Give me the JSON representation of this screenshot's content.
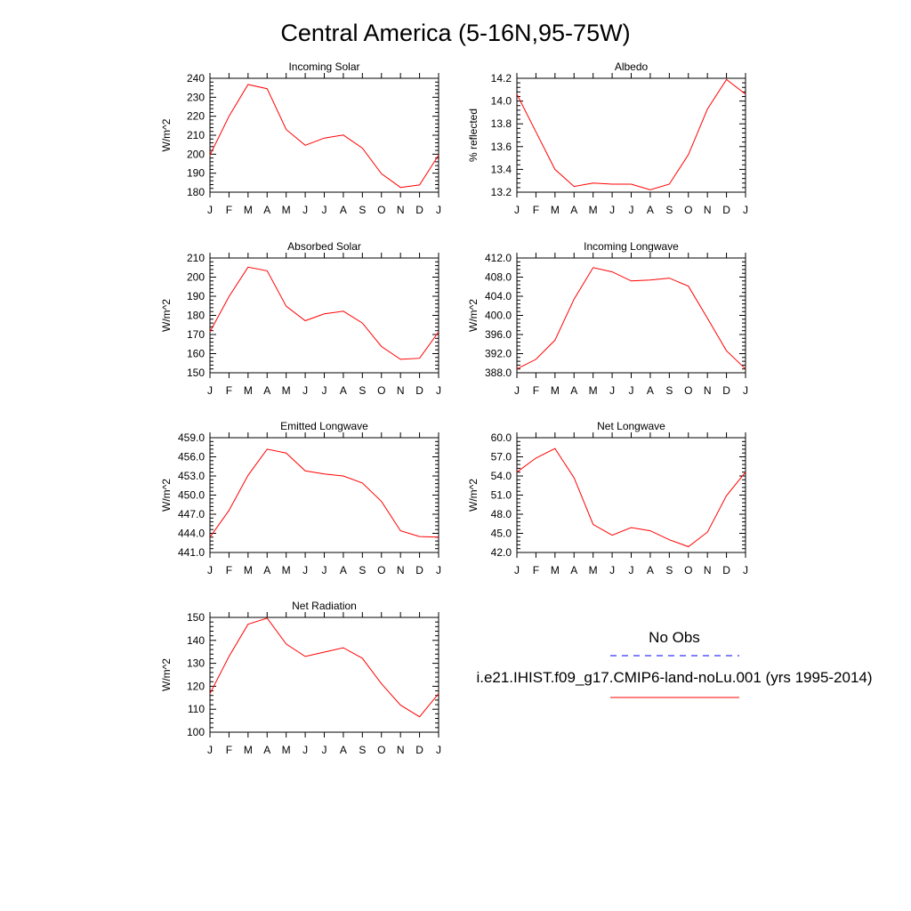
{
  "page_title": "Central America (5-16N,95-75W)",
  "legend": {
    "obs_label": "No Obs",
    "model_label": "i.e21.IHIST.f09_g17.CMIP6-land-noLu.001 (yrs 1995-2014)",
    "obs_color": "#0000ff",
    "model_color": "#ff0000",
    "obs_style": "dashed",
    "model_style": "solid"
  },
  "chart_data": [
    {
      "type": "line",
      "title": "Incoming Solar",
      "ylabel": "W/m^2",
      "xlabel": "",
      "categories": [
        "J",
        "F",
        "M",
        "A",
        "M",
        "J",
        "J",
        "A",
        "S",
        "O",
        "N",
        "D",
        "J"
      ],
      "ylim": [
        180,
        240
      ],
      "yticks": [
        "180",
        "190",
        "200",
        "210",
        "220",
        "230",
        "240"
      ],
      "series": [
        {
          "color": "#ff0000",
          "values": [
            199.5,
            220,
            236.7,
            234.5,
            213,
            204.7,
            208.5,
            210.1,
            203.2,
            189.7,
            182.5,
            183.8,
            199.5
          ]
        }
      ]
    },
    {
      "type": "line",
      "title": "Albedo",
      "ylabel": "% reflected",
      "xlabel": "",
      "categories": [
        "J",
        "F",
        "M",
        "A",
        "M",
        "J",
        "J",
        "A",
        "S",
        "O",
        "N",
        "D",
        "J"
      ],
      "ylim": [
        13.2,
        14.2
      ],
      "yticks": [
        "13.2",
        "13.4",
        "13.6",
        "13.8",
        "14.0",
        "14.2"
      ],
      "series": [
        {
          "color": "#ff0000",
          "values": [
            14.06,
            13.73,
            13.4,
            13.25,
            13.28,
            13.27,
            13.27,
            13.22,
            13.27,
            13.53,
            13.93,
            14.19,
            14.06
          ]
        }
      ]
    },
    {
      "type": "line",
      "title": "Absorbed Solar",
      "ylabel": "W/m^2",
      "xlabel": "",
      "categories": [
        "J",
        "F",
        "M",
        "A",
        "M",
        "J",
        "J",
        "A",
        "S",
        "O",
        "N",
        "D",
        "J"
      ],
      "ylim": [
        150,
        210
      ],
      "yticks": [
        "150",
        "160",
        "170",
        "180",
        "190",
        "200",
        "210"
      ],
      "series": [
        {
          "color": "#ff0000",
          "values": [
            171.4,
            189.8,
            205.2,
            203.3,
            184.8,
            177.2,
            180.8,
            182.2,
            176.0,
            163.7,
            157.0,
            157.6,
            171.4
          ]
        }
      ]
    },
    {
      "type": "line",
      "title": "Incoming Longwave",
      "ylabel": "W/m^2",
      "xlabel": "",
      "categories": [
        "J",
        "F",
        "M",
        "A",
        "M",
        "J",
        "J",
        "A",
        "S",
        "O",
        "N",
        "D",
        "J"
      ],
      "ylim": [
        388.0,
        412.0
      ],
      "yticks": [
        "388.0",
        "392.0",
        "396.0",
        "400.0",
        "404.0",
        "408.0",
        "412.0"
      ],
      "series": [
        {
          "color": "#ff0000",
          "values": [
            388.8,
            390.8,
            394.8,
            403.4,
            410.0,
            409.1,
            407.2,
            407.4,
            407.8,
            406.1,
            399.4,
            392.6,
            388.8
          ]
        }
      ]
    },
    {
      "type": "line",
      "title": "Emitted Longwave",
      "ylabel": "W/m^2",
      "xlabel": "",
      "categories": [
        "J",
        "F",
        "M",
        "A",
        "M",
        "J",
        "J",
        "A",
        "S",
        "O",
        "N",
        "D",
        "J"
      ],
      "ylim": [
        441.0,
        459.0
      ],
      "yticks": [
        "441.0",
        "444.0",
        "447.0",
        "450.0",
        "453.0",
        "456.0",
        "459.0"
      ],
      "series": [
        {
          "color": "#ff0000",
          "values": [
            443.4,
            447.6,
            453.1,
            457.2,
            456.6,
            453.8,
            453.3,
            453.0,
            451.9,
            449.0,
            444.4,
            443.5,
            443.4
          ]
        }
      ]
    },
    {
      "type": "line",
      "title": "Net Longwave",
      "ylabel": "W/m^2",
      "xlabel": "",
      "categories": [
        "J",
        "F",
        "M",
        "A",
        "M",
        "J",
        "J",
        "A",
        "S",
        "O",
        "N",
        "D",
        "J"
      ],
      "ylim": [
        42.0,
        60.0
      ],
      "yticks": [
        "42.0",
        "45.0",
        "48.0",
        "51.0",
        "54.0",
        "57.0",
        "60.0"
      ],
      "series": [
        {
          "color": "#ff0000",
          "values": [
            54.6,
            56.8,
            58.3,
            53.7,
            46.4,
            44.7,
            45.9,
            45.4,
            44.0,
            42.9,
            45.2,
            50.9,
            54.6
          ]
        }
      ]
    },
    {
      "type": "line",
      "title": "Net Radiation",
      "ylabel": "W/m^2",
      "xlabel": "",
      "categories": [
        "J",
        "F",
        "M",
        "A",
        "M",
        "J",
        "J",
        "A",
        "S",
        "O",
        "N",
        "D",
        "J"
      ],
      "ylim": [
        100,
        150
      ],
      "yticks": [
        "100",
        "110",
        "120",
        "130",
        "140",
        "150"
      ],
      "series": [
        {
          "color": "#ff0000",
          "values": [
            116.8,
            133.0,
            147.0,
            149.7,
            138.4,
            133.0,
            134.9,
            136.8,
            132.2,
            121.1,
            111.8,
            106.7,
            116.8
          ]
        }
      ]
    }
  ]
}
